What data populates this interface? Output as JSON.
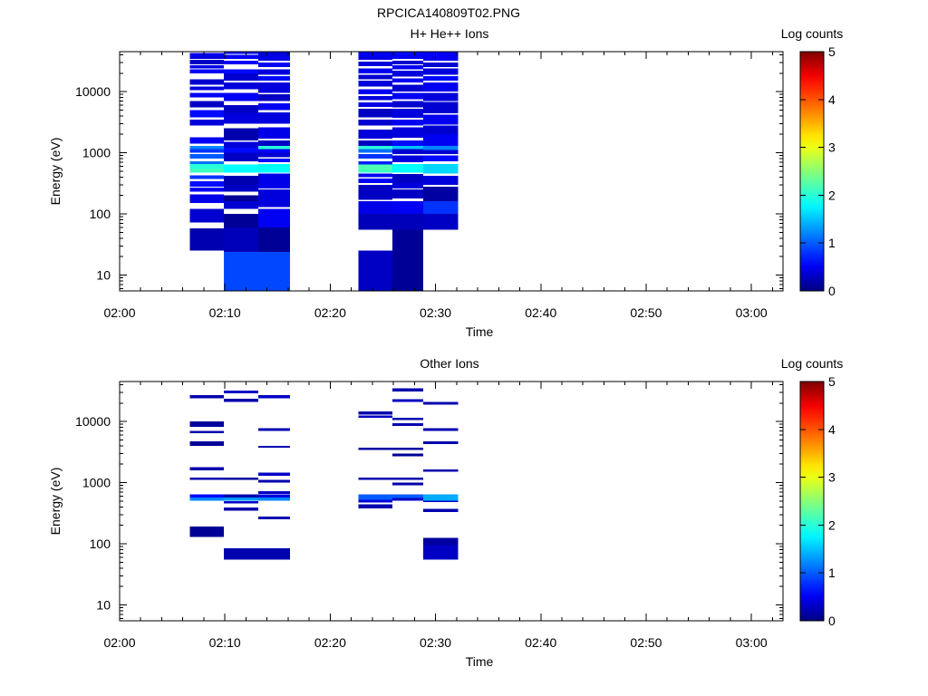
{
  "title": "RPCICA140809T02.PNG",
  "colorbar": {
    "label": "Log counts",
    "ticks": [
      0,
      1,
      2,
      3,
      4,
      5
    ],
    "colormap": "jet",
    "colors": [
      "#00007f",
      "#0000ff",
      "#00ffff",
      "#ffff00",
      "#ff0000",
      "#7f0000"
    ]
  },
  "axes": {
    "xlabel": "Time",
    "ylabel": "Energy (eV)",
    "xticks": [
      "02:00",
      "02:10",
      "02:20",
      "02:30",
      "02:40",
      "02:50",
      "03:00"
    ],
    "yticks": [
      "10",
      "100",
      "1000",
      "10000"
    ]
  },
  "chart_data": [
    {
      "type": "heatmap",
      "title": "H+ He++ Ions",
      "xlabel": "Time",
      "ylabel": "Energy (eV)",
      "yscale": "log",
      "xlim": [
        "02:00",
        "03:03"
      ],
      "ylim": [
        5.5,
        45000
      ],
      "zlabel": "Log counts",
      "zlim": [
        0,
        5
      ],
      "columns": [
        {
          "t0": "02:06:40",
          "t1": "02:09:55",
          "bands": [
            [
              25,
              58,
              0.2
            ],
            [
              72,
              120,
              0.35
            ],
            [
              150,
              210,
              0.45
            ],
            [
              230,
              270,
              0.5
            ],
            [
              280,
              340,
              0.6
            ],
            [
              370,
              430,
              0.8
            ],
            [
              470,
              550,
              2.1
            ],
            [
              550,
              650,
              2.0
            ],
            [
              650,
              720,
              1.1
            ],
            [
              800,
              950,
              1.0
            ],
            [
              1000,
              1150,
              0.8
            ],
            [
              1150,
              1300,
              1.2
            ],
            [
              1400,
              1800,
              0.5
            ],
            [
              2800,
              3500,
              0.4
            ],
            [
              3800,
              5000,
              0.6
            ],
            [
              5500,
              7000,
              0.3
            ],
            [
              8000,
              9500,
              0.5
            ],
            [
              10500,
              12000,
              0.4
            ],
            [
              13000,
              16000,
              0.35
            ],
            [
              20000,
              23000,
              0.5
            ],
            [
              24000,
              27000,
              0.45
            ],
            [
              28000,
              33000,
              0.3
            ],
            [
              34000,
              38000,
              0.4
            ],
            [
              38000,
              43000,
              0.5
            ]
          ]
        },
        {
          "t0": "02:09:55",
          "t1": "02:13:10",
          "bands": [
            [
              5.5,
              24,
              0.9
            ],
            [
              24,
              60,
              0.25
            ],
            [
              60,
              100,
              0.1
            ],
            [
              120,
              160,
              0.35
            ],
            [
              160,
              200,
              0.1
            ],
            [
              230,
              300,
              0.3
            ],
            [
              300,
              420,
              0.2
            ],
            [
              470,
              640,
              1.8
            ],
            [
              720,
              850,
              0.3
            ],
            [
              850,
              1000,
              0.3
            ],
            [
              1000,
              1200,
              0.6
            ],
            [
              1200,
              1500,
              0.4
            ],
            [
              1600,
              2500,
              0.2
            ],
            [
              3000,
              4500,
              0.4
            ],
            [
              4500,
              6000,
              0.3
            ],
            [
              7000,
              9500,
              0.5
            ],
            [
              11000,
              14000,
              0.4
            ],
            [
              15000,
              20000,
              0.35
            ],
            [
              20000,
              23000,
              0.6
            ],
            [
              28000,
              32000,
              0.5
            ],
            [
              34000,
              40000,
              0.5
            ],
            [
              41000,
              45000,
              0.6
            ]
          ]
        },
        {
          "t0": "02:13:10",
          "t1": "02:16:10",
          "bands": [
            [
              5.5,
              24,
              0.9
            ],
            [
              24,
              60,
              0.1
            ],
            [
              60,
              120,
              0.5
            ],
            [
              130,
              250,
              0.4
            ],
            [
              260,
              460,
              0.45
            ],
            [
              470,
              650,
              1.8
            ],
            [
              700,
              800,
              0.6
            ],
            [
              850,
              1000,
              0.35
            ],
            [
              1000,
              1150,
              0.5
            ],
            [
              1150,
              1300,
              2.0
            ],
            [
              1300,
              1600,
              0.3
            ],
            [
              1700,
              2600,
              0.45
            ],
            [
              3000,
              4600,
              0.4
            ],
            [
              5000,
              6400,
              0.5
            ],
            [
              7000,
              9000,
              0.3
            ],
            [
              9500,
              14000,
              0.4
            ],
            [
              15000,
              18000,
              0.6
            ],
            [
              19000,
              23000,
              0.4
            ],
            [
              25000,
              30000,
              0.5
            ],
            [
              32000,
              38000,
              0.45
            ],
            [
              38000,
              45000,
              0.4
            ]
          ]
        },
        {
          "t0": "02:22:40",
          "t1": "02:25:55",
          "bands": [
            [
              5.5,
              25,
              0.3
            ],
            [
              55,
              100,
              0.25
            ],
            [
              100,
              160,
              0.45
            ],
            [
              170,
              300,
              0.3
            ],
            [
              320,
              380,
              0.55
            ],
            [
              400,
              460,
              0.5
            ],
            [
              470,
              520,
              2.1
            ],
            [
              520,
              640,
              2.2
            ],
            [
              640,
              720,
              0.7
            ],
            [
              800,
              950,
              0.8
            ],
            [
              1000,
              1150,
              1.1
            ],
            [
              1150,
              1300,
              2.0
            ],
            [
              1300,
              1600,
              0.3
            ],
            [
              1700,
              2400,
              0.4
            ],
            [
              2800,
              3500,
              0.35
            ],
            [
              3800,
              5200,
              0.3
            ],
            [
              5600,
              6700,
              0.45
            ],
            [
              7200,
              8400,
              0.4
            ],
            [
              9000,
              11000,
              0.5
            ],
            [
              12000,
              15000,
              0.4
            ],
            [
              16000,
              19000,
              0.35
            ],
            [
              20000,
              24000,
              0.5
            ],
            [
              26000,
              31000,
              0.4
            ],
            [
              33000,
              38000,
              0.45
            ],
            [
              38000,
              45000,
              0.5
            ]
          ]
        },
        {
          "t0": "02:25:55",
          "t1": "02:28:50",
          "bands": [
            [
              5.5,
              55,
              0.1
            ],
            [
              55,
              100,
              0.25
            ],
            [
              100,
              160,
              0.5
            ],
            [
              180,
              250,
              0.3
            ],
            [
              260,
              320,
              0.4
            ],
            [
              320,
              450,
              0.3
            ],
            [
              470,
              650,
              1.8
            ],
            [
              700,
              900,
              0.4
            ],
            [
              950,
              1150,
              0.35
            ],
            [
              1150,
              1300,
              1.5
            ],
            [
              1300,
              1600,
              0.6
            ],
            [
              1750,
              2600,
              0.4
            ],
            [
              2800,
              3500,
              0.5
            ],
            [
              3700,
              5200,
              0.4
            ],
            [
              5500,
              7000,
              0.35
            ],
            [
              7500,
              9500,
              0.5
            ],
            [
              10000,
              13000,
              0.35
            ],
            [
              14000,
              16500,
              0.5
            ],
            [
              17500,
              22000,
              0.4
            ],
            [
              23000,
              27000,
              0.5
            ],
            [
              28000,
              32000,
              0.35
            ],
            [
              34000,
              40000,
              0.5
            ],
            [
              40000,
              45000,
              0.6
            ]
          ]
        },
        {
          "t0": "02:28:50",
          "t1": "02:32:10",
          "bands": [
            [
              55,
              100,
              0.3
            ],
            [
              100,
              160,
              0.8
            ],
            [
              160,
              280,
              0.15
            ],
            [
              300,
              420,
              0.4
            ],
            [
              460,
              650,
              1.6
            ],
            [
              720,
              900,
              0.6
            ],
            [
              950,
              1100,
              0.35
            ],
            [
              1100,
              1300,
              1.2
            ],
            [
              1300,
              2000,
              0.5
            ],
            [
              2000,
              2800,
              0.35
            ],
            [
              2900,
              4200,
              0.5
            ],
            [
              4400,
              6800,
              0.35
            ],
            [
              7000,
              9500,
              0.4
            ],
            [
              10000,
              14000,
              0.5
            ],
            [
              15000,
              18000,
              0.6
            ],
            [
              19000,
              24000,
              0.4
            ],
            [
              25000,
              30000,
              0.35
            ],
            [
              32000,
              38000,
              0.5
            ],
            [
              38000,
              45000,
              0.5
            ]
          ]
        }
      ]
    },
    {
      "type": "heatmap",
      "title": "Other Ions",
      "xlabel": "Time",
      "ylabel": "Energy (eV)",
      "yscale": "log",
      "xlim": [
        "02:00",
        "03:03"
      ],
      "ylim": [
        5.5,
        45000
      ],
      "zlabel": "Log counts",
      "zlim": [
        0,
        5
      ],
      "columns": [
        {
          "t0": "02:06:40",
          "t1": "02:09:55",
          "bands": [
            [
              130,
              190,
              0.1
            ],
            [
              510,
              570,
              1.2
            ],
            [
              570,
              640,
              0.6
            ],
            [
              1100,
              1200,
              0.2
            ],
            [
              1600,
              1800,
              0.2
            ],
            [
              4000,
              4700,
              0.1
            ],
            [
              6400,
              7000,
              0.2
            ],
            [
              8200,
              9000,
              0.15
            ],
            [
              9000,
              10000,
              0.1
            ],
            [
              24000,
              27000,
              0.2
            ]
          ]
        },
        {
          "t0": "02:09:55",
          "t1": "02:13:10",
          "bands": [
            [
              55,
              85,
              0.2
            ],
            [
              350,
              390,
              0.2
            ],
            [
              460,
              500,
              0.3
            ],
            [
              510,
              570,
              1.3
            ],
            [
              570,
              640,
              0.2
            ],
            [
              1100,
              1200,
              0.15
            ],
            [
              21000,
              23500,
              0.2
            ],
            [
              29000,
              32000,
              0.3
            ]
          ]
        },
        {
          "t0": "02:13:10",
          "t1": "02:16:10",
          "bands": [
            [
              55,
              85,
              0.2
            ],
            [
              250,
              280,
              0.2
            ],
            [
              510,
              570,
              1.2
            ],
            [
              570,
              640,
              0.4
            ],
            [
              650,
              720,
              0.3
            ],
            [
              1000,
              1100,
              0.2
            ],
            [
              1300,
              1450,
              0.3
            ],
            [
              3700,
              4000,
              0.2
            ],
            [
              7000,
              7700,
              0.2
            ],
            [
              24000,
              27000,
              0.3
            ]
          ]
        },
        {
          "t0": "02:22:40",
          "t1": "02:25:55",
          "bands": [
            [
              380,
              440,
              0.2
            ],
            [
              470,
              520,
              0.4
            ],
            [
              520,
              640,
              1.0
            ],
            [
              1100,
              1200,
              0.2
            ],
            [
              3400,
              3700,
              0.15
            ],
            [
              11500,
              12500,
              0.3
            ],
            [
              13000,
              14500,
              0.2
            ]
          ]
        },
        {
          "t0": "02:25:55",
          "t1": "02:28:50",
          "bands": [
            [
              510,
              560,
              0.3
            ],
            [
              560,
              640,
              1.0
            ],
            [
              900,
              1000,
              0.2
            ],
            [
              1100,
              1200,
              0.2
            ],
            [
              2700,
              3000,
              0.1
            ],
            [
              3400,
              3700,
              0.15
            ],
            [
              8500,
              9300,
              0.2
            ],
            [
              10500,
              11500,
              0.2
            ],
            [
              21000,
              23000,
              0.3
            ],
            [
              31000,
              35000,
              0.2
            ]
          ]
        },
        {
          "t0": "02:28:50",
          "t1": "02:32:10",
          "bands": [
            [
              55,
              95,
              0.3
            ],
            [
              95,
              125,
              0.15
            ],
            [
              330,
              370,
              0.2
            ],
            [
              480,
              510,
              0.3
            ],
            [
              510,
              640,
              1.4
            ],
            [
              1500,
              1650,
              0.2
            ],
            [
              4300,
              4700,
              0.2
            ],
            [
              7000,
              7700,
              0.2
            ],
            [
              19000,
              21000,
              0.2
            ]
          ]
        }
      ]
    }
  ]
}
